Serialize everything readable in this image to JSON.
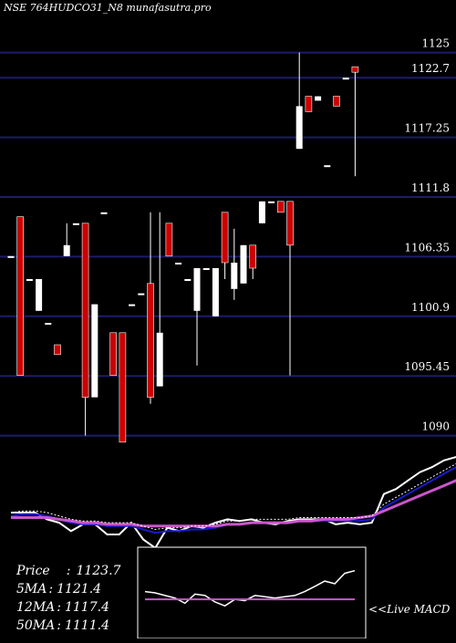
{
  "chart_title": "NSE 764HUDCO31_N8 munafasutra.pro",
  "info_panel": {
    "price_label": "Price",
    "price_value": "1123.7",
    "ma5_label": "5MA",
    "ma5_value": "1121.4",
    "ma12_label": "12MA",
    "ma12_value": "1117.4",
    "ma50_label": "50MA",
    "ma50_value": "1111.4"
  },
  "macd_label": "<<Live MACD",
  "colors": {
    "background": "#000000",
    "gridline": "#1c1c6e",
    "up_candle": "#ffffff",
    "down_candle": "#cc0000",
    "price_line": "#ffffff",
    "ma_blue": "#1a1acc",
    "ma_magenta": "#cc55cc",
    "ma_dotted": "#ffffff"
  },
  "chart_data": [
    {
      "type": "candlestick",
      "title": "NSE 764HUDCO31_N8 munafasutra.pro",
      "ylim": [
        1088.3,
        1128.3
      ],
      "y_gridlines": [
        1125,
        1122.7,
        1117.25,
        1111.8,
        1106.35,
        1100.9,
        1095.45,
        1090
      ],
      "y_tick_labels": [
        "1125",
        "1122.7",
        "1117.25",
        "1111.8",
        "1106.35",
        "1100.9",
        "1095.45",
        "1090"
      ],
      "candles": [
        {
          "o": 1106.4,
          "h": 1106.4,
          "l": 1106.4,
          "c": 1106.4
        },
        {
          "o": 1110.0,
          "h": 1110.0,
          "l": 1095.5,
          "c": 1095.5
        },
        {
          "o": 1104.3,
          "h": 1104.3,
          "l": 1104.3,
          "c": 1104.3
        },
        {
          "o": 1101.4,
          "h": 1104.3,
          "l": 1101.4,
          "c": 1104.3
        },
        {
          "o": 1100.3,
          "h": 1100.3,
          "l": 1100.3,
          "c": 1100.3
        },
        {
          "o": 1098.3,
          "h": 1098.3,
          "l": 1097.4,
          "c": 1097.4
        },
        {
          "o": 1106.4,
          "h": 1109.4,
          "l": 1106.4,
          "c": 1107.4
        },
        {
          "o": 1109.4,
          "h": 1109.4,
          "l": 1109.4,
          "c": 1109.4
        },
        {
          "o": 1109.4,
          "h": 1109.4,
          "l": 1090.0,
          "c": 1093.5
        },
        {
          "o": 1093.5,
          "h": 1102.0,
          "l": 1093.5,
          "c": 1102.0
        },
        {
          "o": 1110.4,
          "h": 1110.4,
          "l": 1110.4,
          "c": 1110.4
        },
        {
          "o": 1099.4,
          "h": 1099.4,
          "l": 1095.5,
          "c": 1095.5
        },
        {
          "o": 1099.4,
          "h": 1099.4,
          "l": 1089.4,
          "c": 1089.4
        },
        {
          "o": 1102.0,
          "h": 1102.0,
          "l": 1102.0,
          "c": 1102.0
        },
        {
          "o": 1103.0,
          "h": 1103.0,
          "l": 1103.0,
          "c": 1103.0
        },
        {
          "o": 1103.9,
          "h": 1110.4,
          "l": 1092.9,
          "c": 1093.5
        },
        {
          "o": 1094.5,
          "h": 1110.4,
          "l": 1094.5,
          "c": 1099.4
        },
        {
          "o": 1109.4,
          "h": 1109.4,
          "l": 1106.4,
          "c": 1106.4
        },
        {
          "o": 1105.8,
          "h": 1105.8,
          "l": 1105.8,
          "c": 1105.8
        },
        {
          "o": 1104.3,
          "h": 1104.3,
          "l": 1104.3,
          "c": 1104.3
        },
        {
          "o": 1101.4,
          "h": 1105.3,
          "l": 1096.4,
          "c": 1105.3
        },
        {
          "o": 1105.3,
          "h": 1105.3,
          "l": 1105.3,
          "c": 1105.3
        },
        {
          "o": 1100.9,
          "h": 1105.3,
          "l": 1100.9,
          "c": 1105.3
        },
        {
          "o": 1110.4,
          "h": 1110.4,
          "l": 1104.3,
          "c": 1105.8
        },
        {
          "o": 1103.4,
          "h": 1108.9,
          "l": 1102.4,
          "c": 1105.8
        },
        {
          "o": 1103.9,
          "h": 1107.4,
          "l": 1103.9,
          "c": 1107.4
        },
        {
          "o": 1107.4,
          "h": 1107.4,
          "l": 1104.3,
          "c": 1105.3
        },
        {
          "o": 1109.4,
          "h": 1111.4,
          "l": 1109.4,
          "c": 1111.4
        },
        {
          "o": 1111.4,
          "h": 1111.4,
          "l": 1111.4,
          "c": 1111.4
        },
        {
          "o": 1111.4,
          "h": 1111.4,
          "l": 1110.4,
          "c": 1110.4
        },
        {
          "o": 1111.4,
          "h": 1111.4,
          "l": 1095.5,
          "c": 1107.4
        },
        {
          "o": 1116.2,
          "h": 1125.0,
          "l": 1116.2,
          "c": 1120.1
        },
        {
          "o": 1121.0,
          "h": 1121.0,
          "l": 1119.6,
          "c": 1119.6
        },
        {
          "o": 1120.6,
          "h": 1121.0,
          "l": 1120.6,
          "c": 1121.0
        },
        {
          "o": 1114.7,
          "h": 1114.7,
          "l": 1114.7,
          "c": 1114.7
        },
        {
          "o": 1121.0,
          "h": 1121.0,
          "l": 1120.1,
          "c": 1120.1
        },
        {
          "o": 1122.7,
          "h": 1122.7,
          "l": 1122.7,
          "c": 1122.7
        },
        {
          "o": 1123.7,
          "h": 1123.7,
          "l": 1113.7,
          "c": 1123.2
        }
      ]
    },
    {
      "type": "line",
      "series": [
        {
          "values": [
            1,
            1,
            1,
            -3,
            -5,
            -10,
            -6,
            -6,
            -12,
            -12,
            -5,
            -15,
            -20,
            -8,
            -10,
            -7,
            -8,
            -5,
            -3,
            -4,
            -3,
            -5,
            -6,
            -4,
            -3,
            -3,
            -3,
            -6,
            -5,
            -6,
            -5,
            12,
            15,
            20,
            25,
            28,
            32,
            34,
            35
          ]
        },
        {
          "values": [
            -1,
            0,
            0,
            -1,
            -3,
            -5,
            -6,
            -6,
            -7,
            -7,
            -7,
            -9,
            -11,
            -10,
            -10,
            -9,
            -9,
            -8,
            -6,
            -6,
            -5,
            -5,
            -5,
            -5,
            -4,
            -4,
            -4,
            -4,
            -4,
            -4,
            -3,
            4,
            8,
            12,
            16,
            20,
            24,
            28,
            30
          ]
        },
        {
          "values": [
            -2,
            -2,
            -2,
            -2,
            -3,
            -4,
            -5,
            -5,
            -6,
            -6,
            -6,
            -7,
            -7,
            -7,
            -7,
            -7,
            -7,
            -7,
            -6,
            -6,
            -5,
            -5,
            -5,
            -5,
            -4,
            -4,
            -3,
            -3,
            -3,
            -2,
            -1,
            2,
            5,
            8,
            11,
            14,
            17,
            20,
            23
          ]
        }
      ]
    },
    {
      "type": "line",
      "series": [
        {
          "values": [
            0.6,
            0.5,
            0.3,
            0.1,
            -0.3,
            0.4,
            0.3,
            -0.2,
            -0.5,
            0.0,
            -0.1,
            0.3,
            0.2,
            0.1,
            0.2,
            0.3,
            0.6,
            1.0,
            1.4,
            1.2,
            2.0,
            2.2
          ]
        },
        {
          "values": [
            0.0,
            0.0,
            0.0,
            0.0,
            0.0,
            0.0,
            0.0,
            0.0,
            0.0,
            0.0,
            0.0,
            0.0,
            0.0,
            0.0,
            0.0,
            0.0,
            0.0,
            0.0,
            0.0,
            0.0,
            0.0,
            0.0
          ]
        }
      ]
    }
  ]
}
